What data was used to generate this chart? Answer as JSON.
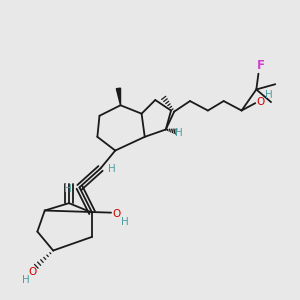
{
  "bg_color": "#e8e8e8",
  "bond_color": "#1a1a1a",
  "h_color": "#4d9ea0",
  "f_color": "#cc44cc",
  "o_color": "#cc0000",
  "figsize": [
    3.0,
    3.0
  ],
  "dpi": 100,
  "xlim": [
    20,
    290
  ],
  "ylim": [
    10,
    295
  ]
}
